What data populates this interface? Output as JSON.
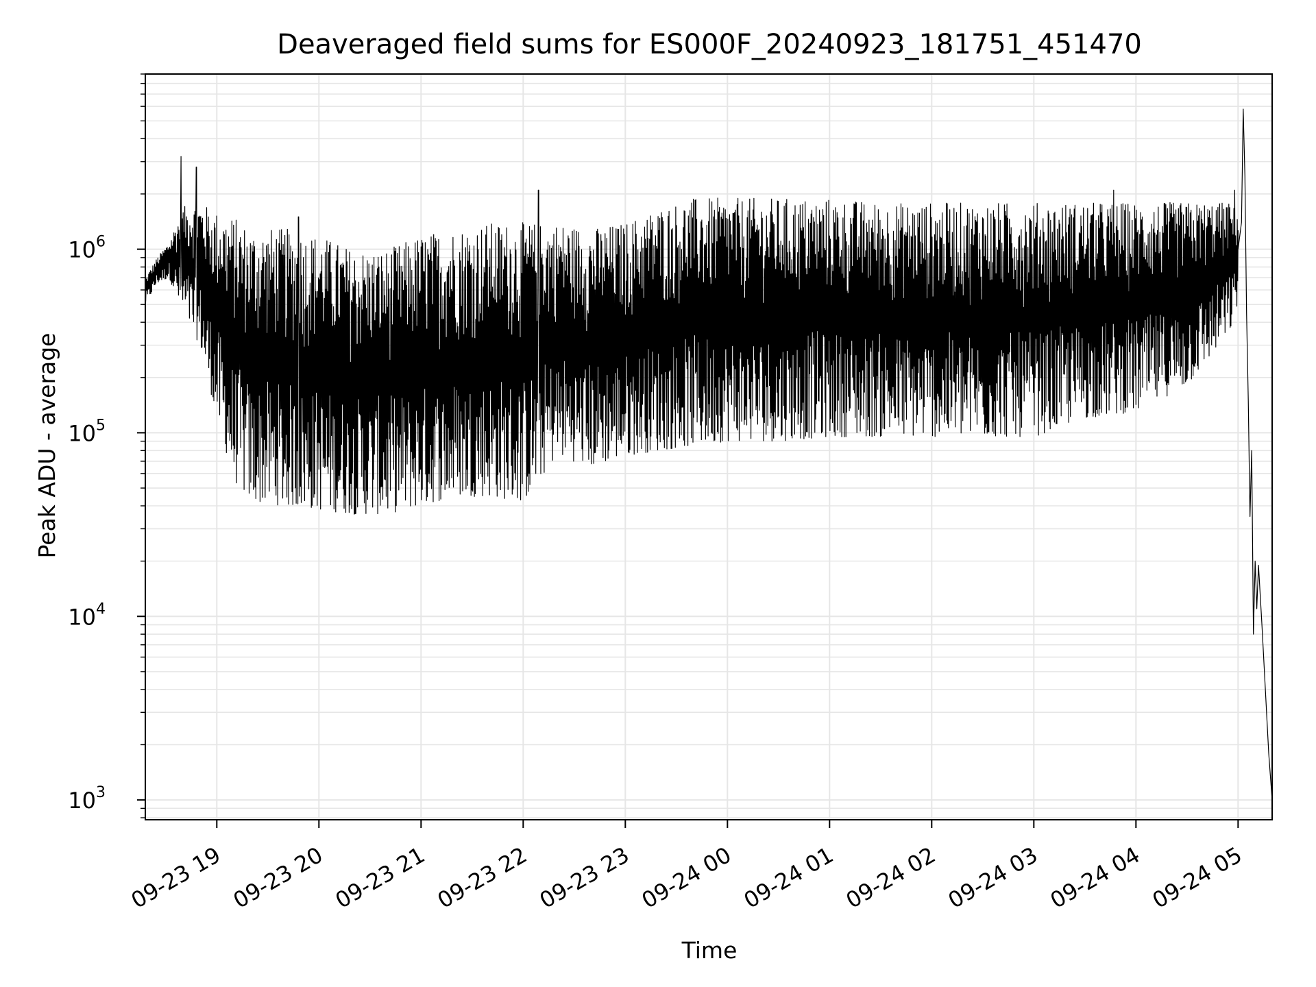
{
  "chart_data": {
    "type": "line",
    "title": "Deaveraged field sums for ES000F_20240923_181751_451470",
    "xlabel": "Time",
    "ylabel": "Peak ADU - average",
    "yscale": "log",
    "ylim": [
      780,
      9000000
    ],
    "xlim": [
      "2024-09-23 18:18",
      "2024-09-24 05:20"
    ],
    "grid": true,
    "line_color": "#000000",
    "grid_color": "#e6e6e6",
    "x_ticks": [
      {
        "label": "09-23 19",
        "t": "2024-09-23 19:00"
      },
      {
        "label": "09-23 20",
        "t": "2024-09-23 20:00"
      },
      {
        "label": "09-23 21",
        "t": "2024-09-23 21:00"
      },
      {
        "label": "09-23 22",
        "t": "2024-09-23 22:00"
      },
      {
        "label": "09-23 23",
        "t": "2024-09-23 23:00"
      },
      {
        "label": "09-24 00",
        "t": "2024-09-24 00:00"
      },
      {
        "label": "09-24 01",
        "t": "2024-09-24 01:00"
      },
      {
        "label": "09-24 02",
        "t": "2024-09-24 02:00"
      },
      {
        "label": "09-24 03",
        "t": "2024-09-24 03:00"
      },
      {
        "label": "09-24 04",
        "t": "2024-09-24 04:00"
      },
      {
        "label": "09-24 05",
        "t": "2024-09-24 05:00"
      }
    ],
    "y_ticks": [
      {
        "base": "10",
        "exp": "3",
        "value": 1000
      },
      {
        "base": "10",
        "exp": "4",
        "value": 10000
      },
      {
        "base": "10",
        "exp": "5",
        "value": 100000
      },
      {
        "base": "10",
        "exp": "6",
        "value": 1000000
      }
    ],
    "series": [
      {
        "envelope": [
          {
            "t": "2024-09-23 18:18",
            "high": 700000,
            "low": 500000
          },
          {
            "t": "2024-09-23 18:25",
            "high": 900000,
            "low": 650000
          },
          {
            "t": "2024-09-23 18:32",
            "high": 1100000,
            "low": 700000
          },
          {
            "t": "2024-09-23 18:40",
            "high": 1700000,
            "low": 450000
          },
          {
            "t": "2024-09-23 18:50",
            "high": 1800000,
            "low": 300000
          },
          {
            "t": "2024-09-23 19:00",
            "high": 1600000,
            "low": 120000
          },
          {
            "t": "2024-09-23 19:10",
            "high": 1500000,
            "low": 55000
          },
          {
            "t": "2024-09-23 19:20",
            "high": 1300000,
            "low": 42000
          },
          {
            "t": "2024-09-23 19:40",
            "high": 1300000,
            "low": 40000
          },
          {
            "t": "2024-09-23 20:00",
            "high": 1200000,
            "low": 38000
          },
          {
            "t": "2024-09-23 20:20",
            "high": 1000000,
            "low": 36000
          },
          {
            "t": "2024-09-23 20:40",
            "high": 1000000,
            "low": 36000
          },
          {
            "t": "2024-09-23 21:00",
            "high": 1200000,
            "low": 40000
          },
          {
            "t": "2024-09-23 21:20",
            "high": 1300000,
            "low": 45000
          },
          {
            "t": "2024-09-23 21:40",
            "high": 1400000,
            "low": 45000
          },
          {
            "t": "2024-09-23 22:00",
            "high": 1400000,
            "low": 42000
          },
          {
            "t": "2024-09-23 22:20",
            "high": 1400000,
            "low": 75000
          },
          {
            "t": "2024-09-23 22:40",
            "high": 1300000,
            "low": 65000
          },
          {
            "t": "2024-09-23 23:00",
            "high": 1400000,
            "low": 75000
          },
          {
            "t": "2024-09-23 23:20",
            "high": 1700000,
            "low": 80000
          },
          {
            "t": "2024-09-23 23:40",
            "high": 1900000,
            "low": 85000
          },
          {
            "t": "2024-09-24 00:00",
            "high": 1900000,
            "low": 90000
          },
          {
            "t": "2024-09-24 00:30",
            "high": 1900000,
            "low": 90000
          },
          {
            "t": "2024-09-24 01:00",
            "high": 1900000,
            "low": 95000
          },
          {
            "t": "2024-09-24 01:30",
            "high": 1800000,
            "low": 95000
          },
          {
            "t": "2024-09-24 02:00",
            "high": 1800000,
            "low": 95000
          },
          {
            "t": "2024-09-24 02:30",
            "high": 1800000,
            "low": 95000
          },
          {
            "t": "2024-09-24 03:00",
            "high": 1800000,
            "low": 95000
          },
          {
            "t": "2024-09-24 03:30",
            "high": 1800000,
            "low": 120000
          },
          {
            "t": "2024-09-24 04:00",
            "high": 1800000,
            "low": 130000
          },
          {
            "t": "2024-09-24 04:30",
            "high": 1800000,
            "low": 180000
          },
          {
            "t": "2024-09-24 04:55",
            "high": 1800000,
            "low": 350000
          },
          {
            "t": "2024-09-24 05:00",
            "high": 1600000,
            "low": 500000
          }
        ],
        "spikes": [
          {
            "t": "2024-09-23 18:39",
            "value": 3200000
          },
          {
            "t": "2024-09-23 18:48",
            "value": 2800000
          },
          {
            "t": "2024-09-23 19:48",
            "value": 1500000
          },
          {
            "t": "2024-09-23 22:09",
            "value": 2100000
          },
          {
            "t": "2024-09-24 03:47",
            "value": 2100000
          },
          {
            "t": "2024-09-24 04:58",
            "value": 2100000
          }
        ],
        "tail": [
          {
            "t": "2024-09-24 05:00",
            "value": 1000000
          },
          {
            "t": "2024-09-24 05:02",
            "value": 1400000
          },
          {
            "t": "2024-09-24 05:03",
            "value": 5800000
          },
          {
            "t": "2024-09-24 05:04",
            "value": 2500000
          },
          {
            "t": "2024-09-24 05:05",
            "value": 450000
          },
          {
            "t": "2024-09-24 05:06",
            "value": 150000
          },
          {
            "t": "2024-09-24 05:07",
            "value": 35000
          },
          {
            "t": "2024-09-24 05:08",
            "value": 80000
          },
          {
            "t": "2024-09-24 05:09",
            "value": 8000
          },
          {
            "t": "2024-09-24 05:10",
            "value": 20000
          },
          {
            "t": "2024-09-24 05:11",
            "value": 11000
          },
          {
            "t": "2024-09-24 05:12",
            "value": 19000
          },
          {
            "t": "2024-09-24 05:14",
            "value": 9000
          },
          {
            "t": "2024-09-24 05:16",
            "value": 4000
          },
          {
            "t": "2024-09-24 05:18",
            "value": 1800
          },
          {
            "t": "2024-09-24 05:20",
            "value": 1000
          }
        ]
      }
    ]
  }
}
